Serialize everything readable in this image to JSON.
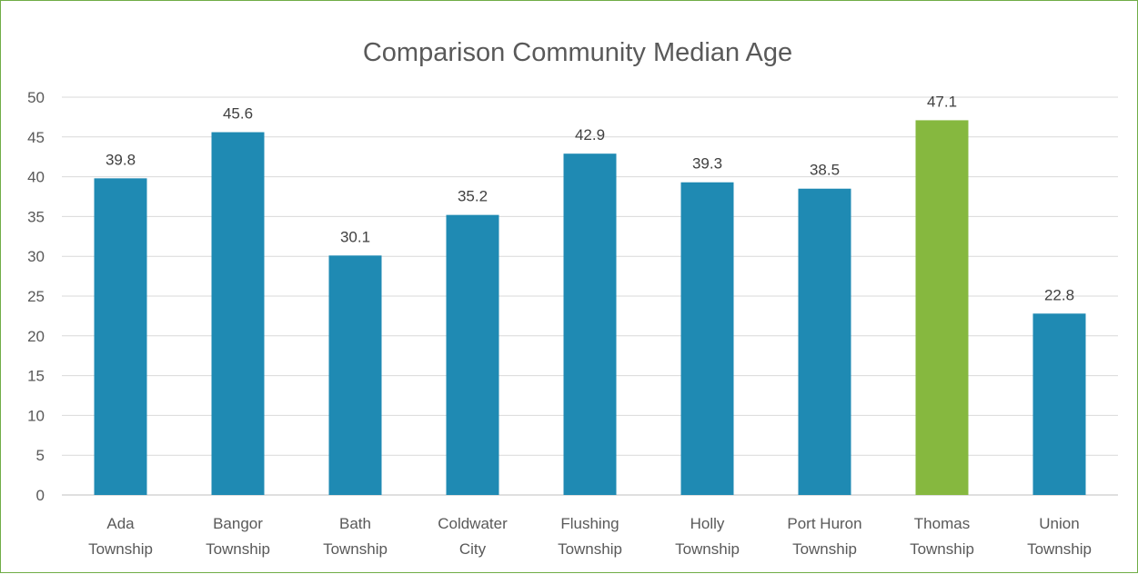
{
  "chart_data": {
    "type": "bar",
    "title": "Comparison Community Median Age",
    "categories": [
      [
        "Ada",
        "Township"
      ],
      [
        "Bangor",
        "Township"
      ],
      [
        "Bath",
        "Township"
      ],
      [
        "Coldwater",
        "City"
      ],
      [
        "Flushing",
        "Township"
      ],
      [
        "Holly",
        "Township"
      ],
      [
        "Port Huron",
        "Township"
      ],
      [
        "Thomas",
        "Township"
      ],
      [
        "Union",
        "Township"
      ]
    ],
    "values": [
      39.8,
      45.6,
      30.1,
      35.2,
      42.9,
      39.3,
      38.5,
      47.1,
      22.8
    ],
    "data_labels": [
      "39.8",
      "45.6",
      "30.1",
      "35.2",
      "42.9",
      "39.3",
      "38.5",
      "47.1",
      "22.8"
    ],
    "y_ticks": [
      "0",
      "5",
      "10",
      "15",
      "20",
      "25",
      "30",
      "35",
      "40",
      "45",
      "50"
    ],
    "ylim": [
      0,
      50
    ],
    "y_step": 5,
    "grid": true,
    "legend": "none",
    "colors": {
      "bar": "#1f8ab3",
      "highlight_bar": "#86b83f",
      "border": "#70ad47"
    },
    "highlight_index": 7
  }
}
